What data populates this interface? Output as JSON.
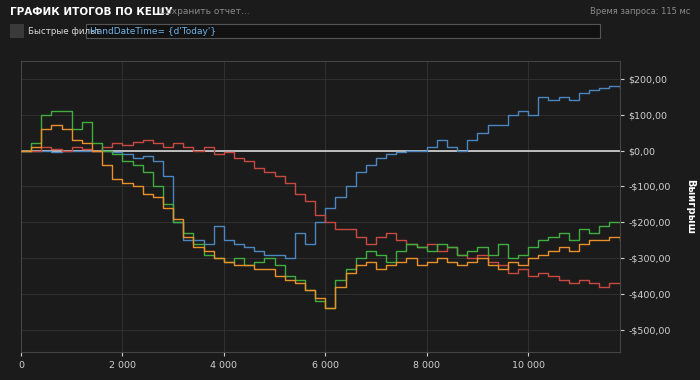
{
  "chart_data": {
    "type": "line",
    "title": "ГРАФИК ИТОГОВ ПО КЕШУ",
    "annotations": [
      "Сохранить отчет...",
      "Время запроса: 115 мс",
      "Быстрые фильт",
      "HandDateTime= {d'Today'}"
    ],
    "y_label": "Выигрыш",
    "x": [
      0,
      200,
      400,
      600,
      800,
      1000,
      1200,
      1400,
      1600,
      1800,
      2000,
      2200,
      2400,
      2600,
      2800,
      3000,
      3200,
      3400,
      3600,
      3800,
      4000,
      4200,
      4400,
      4600,
      4800,
      5000,
      5200,
      5400,
      5600,
      5800,
      6000,
      6200,
      6400,
      6600,
      6800,
      7000,
      7200,
      7400,
      7600,
      7800,
      8000,
      8200,
      8400,
      8600,
      8800,
      9000,
      9200,
      9400,
      9600,
      9800,
      10000,
      10200,
      10400,
      10600,
      10800,
      11000,
      11200,
      11400,
      11600,
      11800
    ],
    "series": [
      {
        "color": "#4a86c0",
        "line_style": "steps",
        "values": [
          0,
          0,
          0,
          -5,
          0,
          0,
          0,
          0,
          0,
          -5,
          -10,
          -20,
          -15,
          -30,
          -70,
          -200,
          -250,
          -250,
          -260,
          -210,
          -250,
          -260,
          -270,
          -280,
          -290,
          -290,
          -300,
          -230,
          -260,
          -200,
          -160,
          -130,
          -100,
          -60,
          -40,
          -20,
          -10,
          -5,
          0,
          0,
          10,
          30,
          10,
          0,
          30,
          50,
          70,
          70,
          100,
          110,
          100,
          150,
          140,
          150,
          140,
          160,
          170,
          175,
          180,
          175
        ]
      },
      {
        "color": "#c8493f",
        "line_style": "steps",
        "values": [
          0,
          0,
          10,
          5,
          0,
          10,
          5,
          0,
          10,
          20,
          15,
          25,
          30,
          20,
          10,
          20,
          10,
          0,
          10,
          -10,
          -5,
          -20,
          -30,
          -50,
          -60,
          -70,
          -90,
          -120,
          -140,
          -180,
          -200,
          -220,
          -220,
          -240,
          -260,
          -240,
          -230,
          -250,
          -260,
          -270,
          -260,
          -280,
          -270,
          -290,
          -300,
          -290,
          -310,
          -320,
          -340,
          -330,
          -350,
          -340,
          -350,
          -360,
          -370,
          -360,
          -370,
          -380,
          -370,
          -370
        ]
      },
      {
        "color": "#3fae3f",
        "line_style": "steps",
        "values": [
          0,
          20,
          100,
          110,
          110,
          60,
          80,
          20,
          0,
          -10,
          -30,
          -40,
          -60,
          -100,
          -150,
          -200,
          -230,
          -260,
          -290,
          -300,
          -310,
          -300,
          -320,
          -310,
          -300,
          -320,
          -350,
          -360,
          -390,
          -420,
          -440,
          -360,
          -330,
          -300,
          -280,
          -290,
          -310,
          -280,
          -260,
          -270,
          -280,
          -260,
          -270,
          -290,
          -280,
          -270,
          -290,
          -260,
          -300,
          -290,
          -270,
          -250,
          -240,
          -230,
          -250,
          -220,
          -230,
          -210,
          -200,
          -200
        ]
      },
      {
        "color": "#e8902a",
        "line_style": "steps",
        "values": [
          0,
          10,
          60,
          70,
          60,
          30,
          20,
          0,
          -40,
          -80,
          -90,
          -100,
          -120,
          -130,
          -160,
          -190,
          -240,
          -270,
          -280,
          -300,
          -310,
          -320,
          -320,
          -330,
          -330,
          -350,
          -360,
          -370,
          -390,
          -410,
          -440,
          -380,
          -340,
          -320,
          -310,
          -330,
          -320,
          -310,
          -300,
          -320,
          -310,
          -300,
          -310,
          -320,
          -310,
          -300,
          -320,
          -330,
          -310,
          -320,
          -300,
          -290,
          -280,
          -270,
          -280,
          -260,
          -250,
          -250,
          -240,
          -250
        ]
      }
    ],
    "baseline": 0,
    "xlim": [
      0,
      11800
    ],
    "xticks": [
      0,
      {
        "value": 2000,
        "label": "2 000"
      },
      {
        "value": 4000,
        "label": "4 000"
      },
      {
        "value": 6000,
        "label": "6 000"
      },
      {
        "value": 8000,
        "label": "8 000"
      },
      {
        "value": 10000,
        "label": "10 000"
      }
    ],
    "ylim": [
      -560,
      250
    ],
    "yticks": [
      {
        "value": 200,
        "label": "$200,00"
      },
      {
        "value": 100,
        "label": "$100,00"
      },
      {
        "value": 0,
        "label": "$0,00"
      },
      {
        "value": -100,
        "label": "-$100,00"
      },
      {
        "value": -200,
        "label": "-$200,00"
      },
      {
        "value": -300,
        "label": "-$300,00"
      },
      {
        "value": -400,
        "label": "-$400,00"
      },
      {
        "value": -500,
        "label": "-$500,00"
      }
    ],
    "grid": true
  }
}
